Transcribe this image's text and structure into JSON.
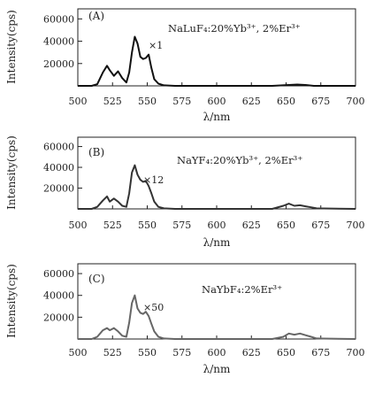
{
  "chart_data": [
    {
      "type": "line",
      "panel": "(A)",
      "compound": "NaLuF₄:20%Yb³⁺, 2%Er³⁺",
      "scale": "×1",
      "color": "#111111",
      "xlabel": "λ/nm",
      "ylabel": "Intensity(cps)",
      "xlim": [
        500,
        700
      ],
      "ylim": [
        0,
        69000
      ],
      "xticks": [
        "500",
        "525",
        "550",
        "575",
        "600",
        "625",
        "650",
        "675",
        "700"
      ],
      "yticks": [
        "20000",
        "40000",
        "60000"
      ],
      "x": [
        500,
        510,
        514,
        518,
        521,
        523,
        526,
        529,
        532,
        535,
        537,
        539,
        541,
        543,
        545,
        547,
        549,
        551,
        553,
        555,
        558,
        562,
        570,
        600,
        640,
        652,
        658,
        664,
        670,
        700
      ],
      "y": [
        0,
        0,
        1500,
        12000,
        18000,
        14000,
        9000,
        13000,
        7000,
        3000,
        12000,
        30000,
        44000,
        38000,
        26000,
        24000,
        25000,
        28000,
        16000,
        6000,
        2000,
        500,
        0,
        0,
        0,
        800,
        1200,
        800,
        0,
        0
      ]
    },
    {
      "type": "line",
      "panel": "(B)",
      "compound": "NaYF₄:20%Yb³⁺, 2%Er³⁺",
      "scale": "×12",
      "color": "#333333",
      "xlabel": "λ/nm",
      "ylabel": "Intensity(cps)",
      "xlim": [
        500,
        700
      ],
      "ylim": [
        0,
        69000
      ],
      "xticks": [
        "500",
        "525",
        "550",
        "575",
        "600",
        "625",
        "650",
        "675",
        "700"
      ],
      "yticks": [
        "20000",
        "40000",
        "60000"
      ],
      "x": [
        500,
        510,
        514,
        518,
        521,
        523,
        526,
        529,
        532,
        535,
        537,
        539,
        541,
        543,
        545,
        547,
        549,
        551,
        553,
        555,
        558,
        562,
        570,
        600,
        640,
        648,
        652,
        656,
        660,
        664,
        668,
        672,
        700
      ],
      "y": [
        0,
        0,
        2000,
        8000,
        12000,
        7000,
        10000,
        7000,
        3000,
        2000,
        15000,
        35000,
        42000,
        33000,
        28000,
        26000,
        27000,
        22000,
        15000,
        7000,
        2000,
        500,
        0,
        0,
        0,
        3000,
        5000,
        3000,
        3500,
        2500,
        1500,
        500,
        0
      ]
    },
    {
      "type": "line",
      "panel": "(C)",
      "compound": "NaYbF₄:2%Er³⁺",
      "scale": "×50",
      "color": "#666666",
      "xlabel": "λ/nm",
      "ylabel": "Intensity(cps)",
      "xlim": [
        500,
        700
      ],
      "ylim": [
        0,
        69000
      ],
      "xticks": [
        "500",
        "525",
        "550",
        "575",
        "600",
        "625",
        "650",
        "675",
        "700"
      ],
      "yticks": [
        "20000",
        "40000",
        "60000"
      ],
      "x": [
        500,
        510,
        514,
        518,
        521,
        523,
        526,
        529,
        532,
        535,
        537,
        539,
        541,
        543,
        545,
        547,
        549,
        551,
        553,
        555,
        558,
        562,
        570,
        600,
        640,
        648,
        652,
        656,
        660,
        664,
        668,
        672,
        700
      ],
      "y": [
        0,
        0,
        2000,
        8000,
        10000,
        8000,
        10000,
        7000,
        3000,
        2000,
        15000,
        33000,
        40000,
        28000,
        24000,
        23000,
        25000,
        21000,
        14000,
        7000,
        2000,
        500,
        0,
        0,
        0,
        2000,
        5000,
        4000,
        5000,
        3500,
        2000,
        500,
        0
      ]
    }
  ]
}
